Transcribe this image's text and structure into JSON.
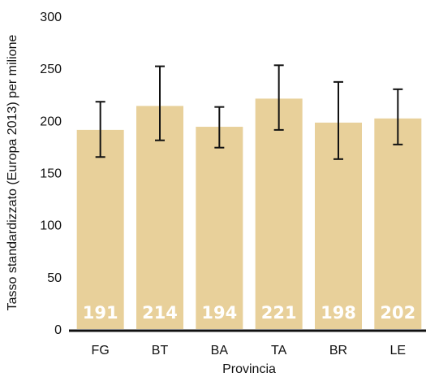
{
  "chart_data": {
    "type": "bar",
    "xlabel": "Provincia",
    "ylabel": "Tasso standardizzato (Europa 2013) per milione",
    "categories": [
      "FG",
      "BT",
      "BA",
      "TA",
      "BR",
      "LE"
    ],
    "values": [
      191,
      214,
      194,
      221,
      198,
      202
    ],
    "error_low": [
      165,
      181,
      174,
      191,
      163,
      177
    ],
    "error_high": [
      218,
      252,
      213,
      253,
      237,
      230
    ],
    "value_labels": [
      "191",
      "214",
      "194",
      "221",
      "198",
      "202"
    ],
    "ylim": [
      0,
      300
    ],
    "yticks": [
      "0",
      "50",
      "100",
      "150",
      "200",
      "250",
      "300"
    ],
    "grid": false,
    "colors": {
      "bar": "#E8D09A",
      "error": "#111111",
      "axis": "#111111",
      "label": "#ffffff"
    }
  }
}
